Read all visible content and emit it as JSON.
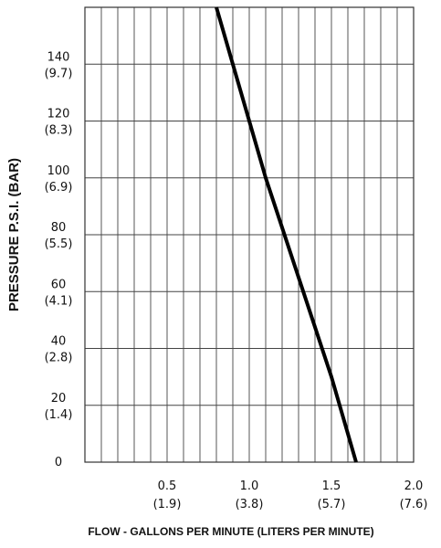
{
  "chart_data": {
    "type": "line",
    "xlabel": "FLOW - GALLONS PER MINUTE  (LITERS PER MINUTE)",
    "ylabel": "PRESSURE  P.S.I.   (BAR)",
    "xlim": [
      0,
      2.0
    ],
    "ylim": [
      0,
      160
    ],
    "x_ticks": [
      {
        "value": 0.5,
        "label": "0.5",
        "sublabel": "(1.9)"
      },
      {
        "value": 1.0,
        "label": "1.0",
        "sublabel": "(3.8)"
      },
      {
        "value": 1.5,
        "label": "1.5",
        "sublabel": "(5.7)"
      },
      {
        "value": 2.0,
        "label": "2.0",
        "sublabel": "(7.6)"
      }
    ],
    "y_ticks": [
      {
        "value": 0,
        "label": "0",
        "sublabel": ""
      },
      {
        "value": 20,
        "label": "20",
        "sublabel": "(1.4)"
      },
      {
        "value": 40,
        "label": "40",
        "sublabel": "(2.8)"
      },
      {
        "value": 60,
        "label": "60",
        "sublabel": "(4.1)"
      },
      {
        "value": 80,
        "label": "80",
        "sublabel": "(5.5)"
      },
      {
        "value": 100,
        "label": "100",
        "sublabel": "(6.9)"
      },
      {
        "value": 120,
        "label": "120",
        "sublabel": "(8.3)"
      },
      {
        "value": 140,
        "label": "140",
        "sublabel": "(9.7)"
      }
    ],
    "x_grid_step": 0.1,
    "y_grid_step": 20,
    "grid": true,
    "series": [
      {
        "color": "#000000",
        "x": [
          0.8,
          1.1,
          1.5,
          1.65
        ],
        "y": [
          160,
          100,
          30,
          0
        ]
      }
    ]
  }
}
